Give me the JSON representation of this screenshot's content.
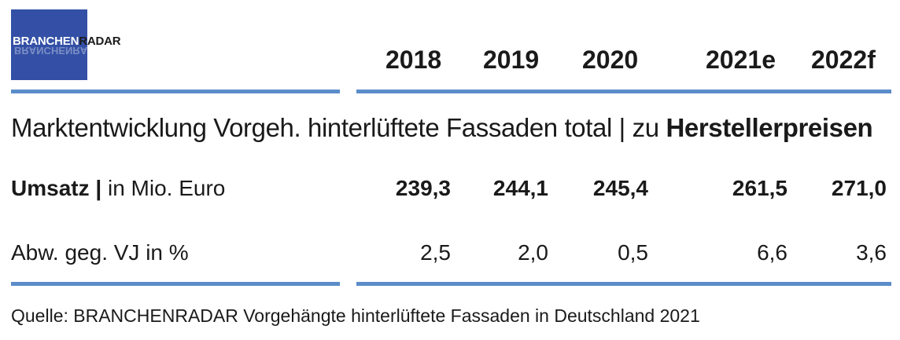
{
  "logo": {
    "part1": "BRANCHEN",
    "part2": "RADAR"
  },
  "years": [
    "2018",
    "2019",
    "2020",
    "2021e",
    "2022f"
  ],
  "title": {
    "prefix": "Marktentwicklung Vorgeh. hinterlüftete Fassaden total | zu ",
    "bold": "Herstellerpreisen"
  },
  "rows": [
    {
      "label_bold": "Umsatz |",
      "label_rest": " in Mio. Euro",
      "values": [
        "239,3",
        "244,1",
        "245,4",
        "261,5",
        "271,0"
      ]
    },
    {
      "label": "Abw. geg. VJ in %",
      "values": [
        "2,5",
        "2,0",
        "0,5",
        "6,6",
        "3,6"
      ]
    }
  ],
  "source": "Quelle: BRANCHENRADAR Vorgehängte hinterlüftete Fassaden in Deutschland 2021",
  "colors": {
    "logo_bg": "#3350a6",
    "rule": "#5b8dc9"
  }
}
